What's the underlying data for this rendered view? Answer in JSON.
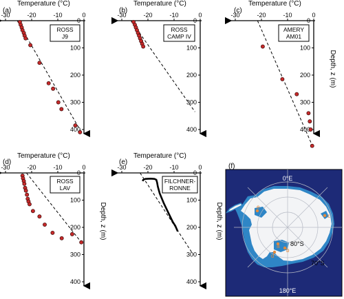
{
  "chart_data": [
    {
      "type": "scatter",
      "panel": "(a)",
      "site_label": [
        "ROSS",
        "J9"
      ],
      "xlabel": "Temperature (°C)",
      "ylabel": "",
      "xticks": [
        -30,
        -20,
        -10,
        0
      ],
      "yticks": [
        0,
        100,
        200,
        300,
        400
      ],
      "xlim": [
        -30,
        0
      ],
      "ylim": [
        0,
        420
      ],
      "points": [
        [
          -24.5,
          5
        ],
        [
          -24.2,
          15
        ],
        [
          -23.8,
          25
        ],
        [
          -23.5,
          35
        ],
        [
          -23.0,
          45
        ],
        [
          -22.7,
          55
        ],
        [
          -22.3,
          65
        ],
        [
          -20.5,
          90
        ],
        [
          -17.0,
          155
        ],
        [
          -13.5,
          230
        ],
        [
          -11.8,
          250
        ],
        [
          -9.8,
          300
        ],
        [
          -8.6,
          325
        ],
        [
          -3.3,
          385
        ],
        [
          -1.5,
          410
        ]
      ],
      "fit_line": [
        [
          -25.5,
          0
        ],
        [
          -1.0,
          410
        ]
      ]
    },
    {
      "type": "scatter",
      "panel": "(b)",
      "site_label": [
        "ROSS",
        "CAMP IV"
      ],
      "xlabel": "Temperature (°C)",
      "ylabel": "",
      "xticks": [
        -30,
        -20,
        -10,
        0
      ],
      "yticks": [
        0,
        100,
        200,
        300,
        400
      ],
      "xlim": [
        -30,
        0
      ],
      "ylim": [
        0,
        420
      ],
      "points": [
        [
          -25.5,
          5
        ],
        [
          -25.0,
          15
        ],
        [
          -24.6,
          25
        ],
        [
          -24.2,
          35
        ],
        [
          -23.8,
          45
        ],
        [
          -23.4,
          55
        ],
        [
          -23.0,
          65
        ],
        [
          -22.6,
          75
        ],
        [
          -22.2,
          85
        ],
        [
          -21.8,
          95
        ]
      ],
      "fit_line": [
        [
          -26.5,
          0
        ],
        [
          -2.0,
          335
        ]
      ]
    },
    {
      "type": "scatter",
      "panel": "(c)",
      "site_label": [
        "AMERY",
        "AM01"
      ],
      "xlabel": "Temperature (°C)",
      "ylabel": "Depth, z (m)",
      "xticks": [
        -30,
        -20,
        -10,
        0
      ],
      "yticks": [
        0,
        100,
        200,
        300,
        400
      ],
      "xlim": [
        -30,
        0
      ],
      "ylim": [
        0,
        420
      ],
      "points": [
        [
          -19.5,
          95
        ],
        [
          -12.0,
          215
        ],
        [
          -6.5,
          270
        ],
        [
          -2.0,
          340
        ],
        [
          -1.5,
          370
        ],
        [
          -1.2,
          400
        ],
        [
          -0.6,
          460
        ]
      ],
      "fit_line": [
        [
          -21.5,
          0
        ],
        [
          -0.5,
          460
        ]
      ]
    },
    {
      "type": "scatter",
      "panel": "(d)",
      "site_label": [
        "ROSS",
        "LAV"
      ],
      "xlabel": "Temperature (°C)",
      "ylabel": "Depth, z (m)",
      "xticks": [
        -30,
        -20,
        -10,
        0
      ],
      "yticks": [
        0,
        100,
        200,
        300,
        400
      ],
      "xlim": [
        -30,
        0
      ],
      "ylim": [
        0,
        420
      ],
      "points": [
        [
          -23.5,
          10
        ],
        [
          -23.3,
          20
        ],
        [
          -23.0,
          30
        ],
        [
          -22.8,
          40
        ],
        [
          -22.5,
          55
        ],
        [
          -22.2,
          65
        ],
        [
          -21.8,
          80
        ],
        [
          -21.5,
          95
        ],
        [
          -21.2,
          105
        ],
        [
          -20.8,
          115
        ],
        [
          -19.5,
          140
        ],
        [
          -17.0,
          160
        ],
        [
          -15.0,
          190
        ],
        [
          -12.0,
          220
        ],
        [
          -8.5,
          240
        ],
        [
          -4.5,
          225
        ],
        [
          -1.0,
          255
        ]
      ],
      "fit_line": [
        [
          -22.0,
          0
        ],
        [
          -1.0,
          255
        ]
      ]
    },
    {
      "type": "line",
      "panel": "(e)",
      "site_label": [
        "FILCHNER-",
        "RONNE"
      ],
      "xlabel": "Temperature (°C)",
      "ylabel": "Depth, z (m)",
      "xticks": [
        -30,
        -20,
        -10,
        0
      ],
      "yticks": [
        0,
        100,
        200,
        300,
        400
      ],
      "xlim": [
        -30,
        0
      ],
      "ylim": [
        0,
        420
      ],
      "profile": [
        [
          -22.0,
          30
        ],
        [
          -21.8,
          25
        ],
        [
          -21.0,
          22
        ],
        [
          -19.0,
          21
        ],
        [
          -17.5,
          22
        ],
        [
          -16.8,
          25
        ],
        [
          -16.5,
          35
        ],
        [
          -16.2,
          50
        ],
        [
          -15.5,
          75
        ],
        [
          -14.0,
          110
        ],
        [
          -12.0,
          150
        ],
        [
          -10.5,
          180
        ],
        [
          -9.5,
          195
        ],
        [
          -8.6,
          215
        ]
      ],
      "fit_line": [
        [
          -23.0,
          0
        ],
        [
          -3.0,
          295
        ]
      ]
    }
  ],
  "map": {
    "panel": "(f)",
    "labels": {
      "lon_top": "0°E",
      "lon_bottom": "180°E",
      "lat_80": "80°S",
      "lat_70": "70°S"
    },
    "site_letters": [
      "e",
      "c",
      "a",
      "b",
      "d"
    ],
    "colors": {
      "ocean": "#1d2a77",
      "land": "#f3f4f6",
      "ice_shelf": "#2f86c6",
      "marker": "#e38a3c"
    }
  },
  "colors": {
    "point_fill": "#c62a2a",
    "point_stroke": "#3a0a0a",
    "axis": "#000000"
  }
}
